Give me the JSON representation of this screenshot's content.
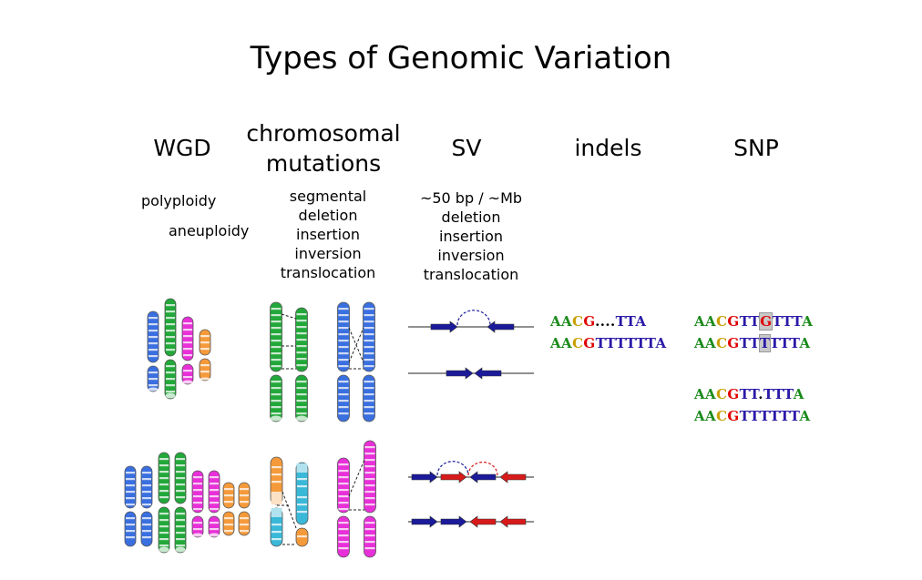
{
  "title": "Types of Genomic Variation",
  "columns": {
    "wgd": {
      "heading": "WGD",
      "items": [
        "polyploidy",
        "aneuploidy"
      ]
    },
    "chromosomal": {
      "heading_line1": "chromosomal",
      "heading_line2": "mutations",
      "items": [
        "segmental",
        "deletion",
        "insertion",
        "inversion",
        "translocation"
      ]
    },
    "sv": {
      "heading": "SV",
      "items": [
        "~50 bp / ~Mb",
        "deletion",
        "insertion",
        "inversion",
        "translocation"
      ]
    },
    "indels": {
      "heading": "indels",
      "seq_top": [
        {
          "t": "AA",
          "c": "g"
        },
        {
          "t": "C",
          "c": "y"
        },
        {
          "t": "G",
          "c": "r"
        },
        {
          "t": "....",
          "c": "k"
        },
        {
          "t": "TTA",
          "c": "b"
        }
      ],
      "seq_bottom": [
        {
          "t": "AA",
          "c": "g"
        },
        {
          "t": "C",
          "c": "y"
        },
        {
          "t": "G",
          "c": "r"
        },
        {
          "t": "TTTTTTA",
          "c": "b"
        }
      ]
    },
    "snp": {
      "heading": "SNP",
      "pair1_top": [
        {
          "t": "AA",
          "c": "g"
        },
        {
          "t": "C",
          "c": "y"
        },
        {
          "t": "G",
          "c": "r"
        },
        {
          "t": "TT",
          "c": "b"
        },
        {
          "t": "G",
          "c": "r",
          "box": true
        },
        {
          "t": "TTT",
          "c": "b"
        },
        {
          "t": "A",
          "c": "g"
        }
      ],
      "pair1_bottom": [
        {
          "t": "AA",
          "c": "g"
        },
        {
          "t": "C",
          "c": "y"
        },
        {
          "t": "G",
          "c": "r"
        },
        {
          "t": "TT",
          "c": "b"
        },
        {
          "t": "T",
          "c": "b",
          "box": true
        },
        {
          "t": "TTT",
          "c": "b"
        },
        {
          "t": "A",
          "c": "g"
        }
      ],
      "pair2_top": [
        {
          "t": "AA",
          "c": "g"
        },
        {
          "t": "C",
          "c": "y"
        },
        {
          "t": "G",
          "c": "r"
        },
        {
          "t": "TT",
          "c": "b"
        },
        {
          "t": ".",
          "c": "k"
        },
        {
          "t": "TTT",
          "c": "b"
        },
        {
          "t": "A",
          "c": "g"
        }
      ],
      "pair2_bottom": [
        {
          "t": "AA",
          "c": "g"
        },
        {
          "t": "C",
          "c": "y"
        },
        {
          "t": "G",
          "c": "r"
        },
        {
          "t": "TTTTTT",
          "c": "b"
        },
        {
          "t": "A",
          "c": "g"
        }
      ]
    }
  },
  "colors": {
    "blue": "#3a6fe0",
    "green": "#22a83a",
    "magenta": "#e830d8",
    "orange": "#f59a3a",
    "cyan": "#3ab8d8",
    "arrow_blue": "#1a1a9a",
    "arrow_red": "#d81a1a"
  }
}
